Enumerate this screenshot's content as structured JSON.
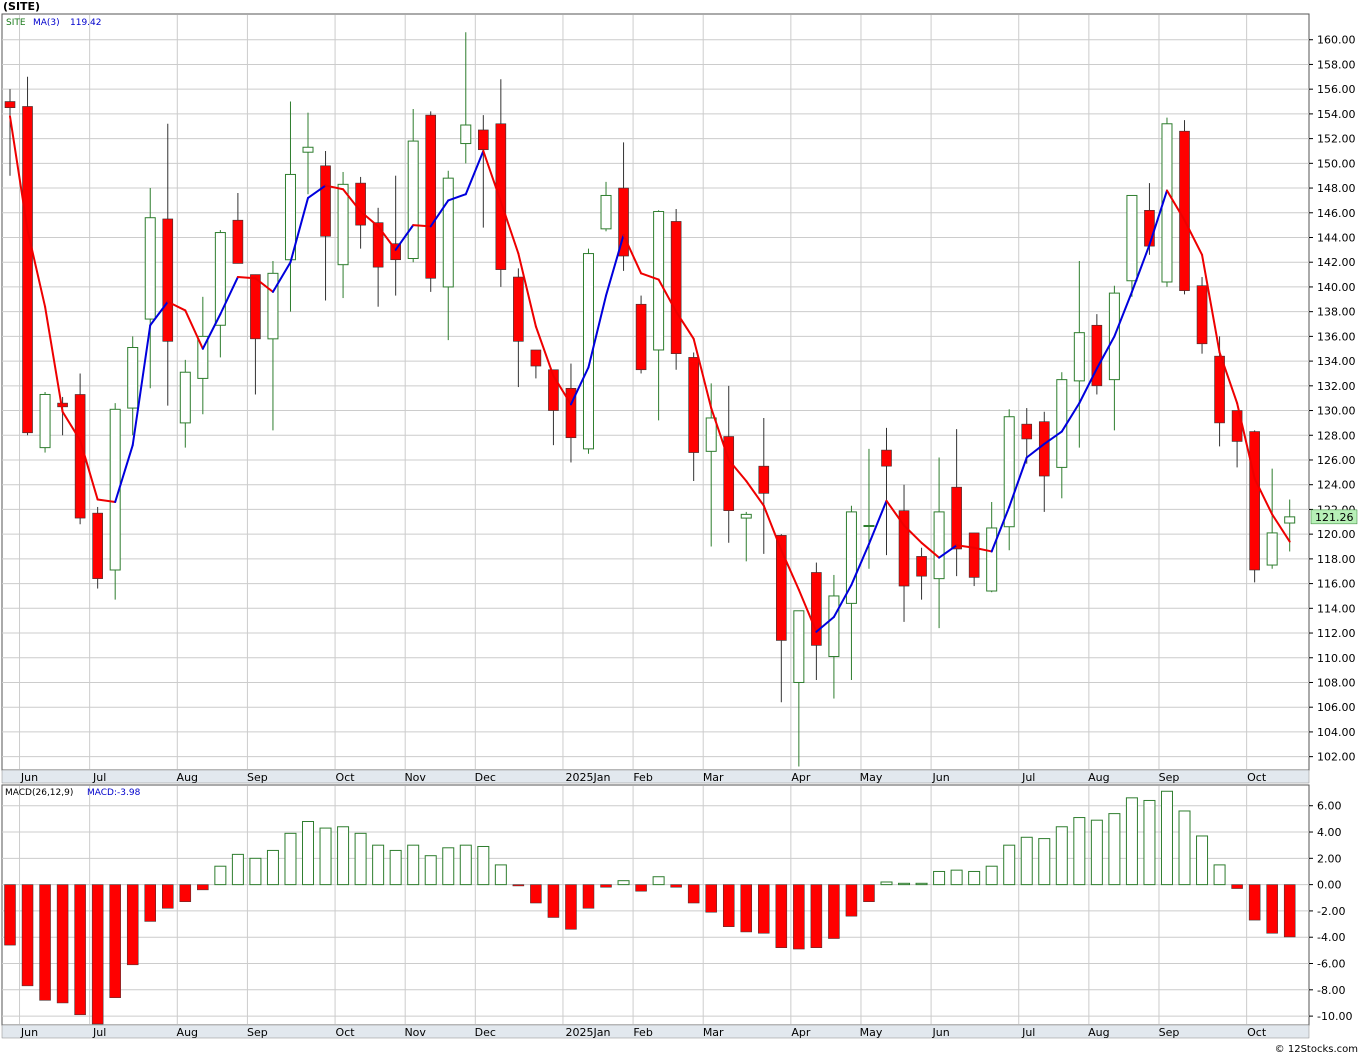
{
  "header": {
    "symbol_title": "(SITE)",
    "credit": "© 12Stocks.com"
  },
  "legend": {
    "price_symbol": "SITE",
    "ma_label": "MA(3)",
    "ma_value": "119.42",
    "macd_label": "MACD(26,12,9)",
    "macd_value": "MACD:-3.98"
  },
  "last_price_label": "121.26",
  "colors": {
    "up_candle": "#ffffff",
    "up_outline": "#2e7d2e",
    "down_candle": "#ff0000",
    "ma_rising": "#0000dd",
    "ma_falling": "#ee0000",
    "macd_pos_outline": "#2e7d2e",
    "macd_neg": "#ff0000",
    "grid": "#cccccc",
    "axis_band": "#e2e8ee",
    "price_tag": "#b7f0b7"
  },
  "x_axis_months": [
    "Jun",
    "Jul",
    "Aug",
    "Sep",
    "Oct",
    "Nov",
    "Dec",
    "2025Jan",
    "Feb",
    "Mar",
    "Apr",
    "May",
    "Jun",
    "Jul",
    "Aug",
    "Sep",
    "Oct"
  ],
  "chart_data": [
    {
      "type": "candlestick",
      "title": "(SITE)",
      "series": [
        {
          "name": "SITE",
          "kind": "ohlc",
          "ohlc": [
            [
              155.0,
              156.0,
              149.0,
              154.5
            ],
            [
              154.6,
              157.0,
              128.0,
              128.2
            ],
            [
              127.0,
              131.5,
              126.6,
              131.3
            ],
            [
              130.6,
              131.1,
              128.0,
              130.3
            ],
            [
              131.3,
              133.0,
              120.8,
              121.3
            ],
            [
              121.7,
              122.2,
              115.6,
              116.4
            ],
            [
              117.1,
              130.6,
              114.7,
              130.1
            ],
            [
              130.2,
              136.0,
              128.0,
              135.1
            ],
            [
              137.4,
              148.0,
              131.8,
              145.6
            ],
            [
              145.5,
              153.2,
              130.4,
              135.6
            ],
            [
              129.0,
              134.1,
              127.0,
              133.1
            ],
            [
              132.6,
              139.2,
              129.7,
              136.0
            ],
            [
              136.9,
              144.6,
              134.3,
              144.4
            ],
            [
              145.4,
              147.6,
              141.9,
              141.9
            ],
            [
              141.0,
              141.0,
              131.3,
              135.8
            ],
            [
              135.8,
              142.1,
              128.4,
              141.1
            ],
            [
              142.2,
              155.0,
              138.0,
              149.1
            ],
            [
              150.9,
              154.1,
              147.5,
              151.3
            ],
            [
              149.8,
              151.0,
              138.9,
              144.1
            ],
            [
              141.8,
              149.3,
              139.1,
              148.3
            ],
            [
              148.4,
              148.9,
              143.1,
              145.0
            ],
            [
              145.2,
              146.4,
              138.4,
              141.6
            ],
            [
              143.5,
              149.0,
              139.3,
              142.2
            ],
            [
              142.3,
              154.4,
              142.0,
              151.8
            ],
            [
              153.9,
              154.2,
              139.6,
              140.7
            ],
            [
              140.0,
              149.4,
              135.7,
              148.8
            ],
            [
              151.6,
              160.6,
              150.0,
              153.1
            ],
            [
              152.7,
              153.9,
              144.8,
              151.1
            ],
            [
              153.2,
              156.8,
              140.0,
              141.4
            ],
            [
              140.8,
              141.5,
              131.9,
              135.6
            ],
            [
              134.9,
              134.9,
              132.6,
              133.6
            ],
            [
              133.3,
              133.3,
              127.2,
              130.0
            ],
            [
              131.8,
              133.8,
              125.8,
              127.8
            ],
            [
              126.9,
              143.1,
              126.5,
              142.7
            ],
            [
              144.7,
              148.5,
              144.5,
              147.4
            ],
            [
              148.0,
              151.7,
              141.3,
              142.5
            ],
            [
              138.6,
              139.3,
              133.0,
              133.3
            ],
            [
              134.9,
              146.2,
              129.2,
              146.1
            ],
            [
              145.3,
              146.3,
              133.3,
              134.6
            ],
            [
              134.3,
              134.7,
              124.3,
              126.6
            ],
            [
              126.7,
              132.2,
              119.0,
              129.4
            ],
            [
              127.9,
              132.0,
              119.3,
              121.9
            ],
            [
              121.3,
              121.8,
              117.8,
              121.6
            ],
            [
              125.5,
              129.4,
              118.4,
              123.3
            ],
            [
              119.9,
              120.0,
              106.4,
              111.4
            ],
            [
              108.0,
              113.8,
              101.2,
              113.8
            ],
            [
              116.9,
              117.7,
              108.2,
              111.0
            ],
            [
              110.1,
              116.7,
              106.7,
              115.0
            ],
            [
              114.4,
              122.3,
              108.2,
              121.8
            ],
            [
              120.7,
              126.9,
              117.2,
              120.7
            ],
            [
              126.8,
              128.6,
              118.3,
              125.5
            ],
            [
              121.9,
              124.0,
              112.9,
              115.8
            ],
            [
              118.2,
              118.9,
              114.7,
              116.6
            ],
            [
              116.4,
              126.2,
              112.4,
              121.8
            ],
            [
              123.8,
              128.5,
              116.6,
              118.8
            ],
            [
              120.1,
              120.1,
              115.8,
              116.5
            ],
            [
              115.4,
              122.6,
              115.3,
              120.5
            ],
            [
              120.6,
              130.1,
              118.7,
              129.5
            ],
            [
              128.9,
              130.2,
              125.7,
              127.7
            ],
            [
              129.1,
              129.9,
              121.8,
              124.7
            ],
            [
              125.4,
              133.1,
              122.9,
              132.5
            ],
            [
              132.4,
              142.1,
              127.0,
              136.3
            ],
            [
              136.9,
              137.8,
              131.3,
              132.0
            ],
            [
              132.5,
              140.1,
              128.4,
              139.5
            ],
            [
              140.5,
              147.2,
              139.2,
              147.4
            ],
            [
              146.2,
              148.4,
              142.6,
              143.3
            ],
            [
              140.4,
              153.7,
              140.0,
              153.2
            ],
            [
              152.6,
              153.5,
              139.4,
              139.7
            ],
            [
              140.1,
              140.8,
              134.6,
              135.4
            ],
            [
              134.4,
              136.0,
              127.1,
              129.0
            ],
            [
              130.0,
              130.0,
              125.4,
              127.5
            ],
            [
              128.3,
              128.4,
              116.1,
              117.1
            ],
            [
              117.5,
              125.3,
              117.2,
              120.1
            ],
            [
              120.9,
              122.8,
              118.6,
              121.4
            ]
          ]
        },
        {
          "name": "MA(3)",
          "kind": "line",
          "values": [
            153.8,
            144.6,
            138.4,
            129.9,
            127.6,
            122.8,
            122.6,
            127.2,
            136.9,
            138.8,
            138.1,
            135.0,
            137.8,
            140.8,
            140.7,
            139.6,
            142.0,
            147.2,
            148.2,
            147.9,
            146.1,
            144.9,
            143.0,
            145.0,
            144.9,
            147.0,
            147.5,
            151.0,
            146.9,
            142.7,
            136.8,
            132.8,
            130.5,
            133.5,
            139.3,
            144.2,
            141.1,
            140.6,
            138.0,
            135.8,
            130.2,
            126.0,
            124.3,
            122.3,
            118.7,
            115.5,
            112.1,
            113.3,
            115.9,
            119.2,
            122.7,
            120.7,
            119.3,
            118.1,
            119.1,
            118.9,
            118.6,
            122.2,
            126.2,
            127.3,
            128.3,
            130.6,
            133.4,
            136.0,
            139.6,
            143.4,
            147.8,
            145.4,
            142.6,
            134.7,
            130.6,
            124.5,
            121.6,
            119.4
          ]
        }
      ],
      "ylim": [
        101,
        162
      ],
      "y_ticks": [
        102,
        104,
        106,
        108,
        110,
        112,
        114,
        116,
        118,
        120,
        122,
        124,
        126,
        128,
        130,
        132,
        134,
        136,
        138,
        140,
        142,
        144,
        146,
        148,
        150,
        152,
        154,
        156,
        158,
        160
      ],
      "y_tick_labels": [
        "102.00",
        "104.00",
        "106.00",
        "108.00",
        "110.00",
        "112.00",
        "114.00",
        "116.00",
        "118.00",
        "120.00",
        "122.00",
        "124.00",
        "126.00",
        "128.00",
        "130.00",
        "132.00",
        "134.00",
        "136.00",
        "138.00",
        "140.00",
        "142.00",
        "144.00",
        "146.00",
        "148.00",
        "150.00",
        "152.00",
        "154.00",
        "156.00",
        "158.00",
        "160.00"
      ],
      "grid": true
    },
    {
      "type": "bar",
      "title": "MACD(26,12,9)",
      "series": [
        {
          "name": "MACD(26,12,9)",
          "values": [
            -4.6,
            -7.7,
            -8.8,
            -9.0,
            -9.9,
            -10.6,
            -8.6,
            -6.1,
            -2.8,
            -1.8,
            -1.3,
            -0.4,
            1.4,
            2.3,
            2.0,
            2.6,
            3.9,
            4.8,
            4.3,
            4.4,
            3.9,
            3.0,
            2.6,
            3.0,
            2.2,
            2.8,
            3.0,
            2.9,
            1.5,
            -0.1,
            -1.4,
            -2.5,
            -3.4,
            -1.8,
            -0.2,
            0.3,
            -0.5,
            0.6,
            -0.2,
            -1.4,
            -2.1,
            -3.2,
            -3.6,
            -3.7,
            -4.8,
            -4.9,
            -4.8,
            -4.1,
            -2.4,
            -1.3,
            0.2,
            0.1,
            0.1,
            1.0,
            1.1,
            1.0,
            1.4,
            3.0,
            3.6,
            3.5,
            4.4,
            5.1,
            4.9,
            5.4,
            6.6,
            6.4,
            7.1,
            5.6,
            3.7,
            1.5,
            -0.3,
            -2.7,
            -3.7,
            -3.98
          ]
        }
      ],
      "ylim": [
        -10.6,
        7.5
      ],
      "y_ticks": [
        -10,
        -8,
        -6,
        -4,
        -2,
        0,
        2,
        4,
        6
      ],
      "y_tick_labels": [
        "-10.00",
        "-8.00",
        "-6.00",
        "-4.00",
        "-2.00",
        "0.00",
        "2.00",
        "4.00",
        "6.00"
      ],
      "grid": true
    }
  ]
}
